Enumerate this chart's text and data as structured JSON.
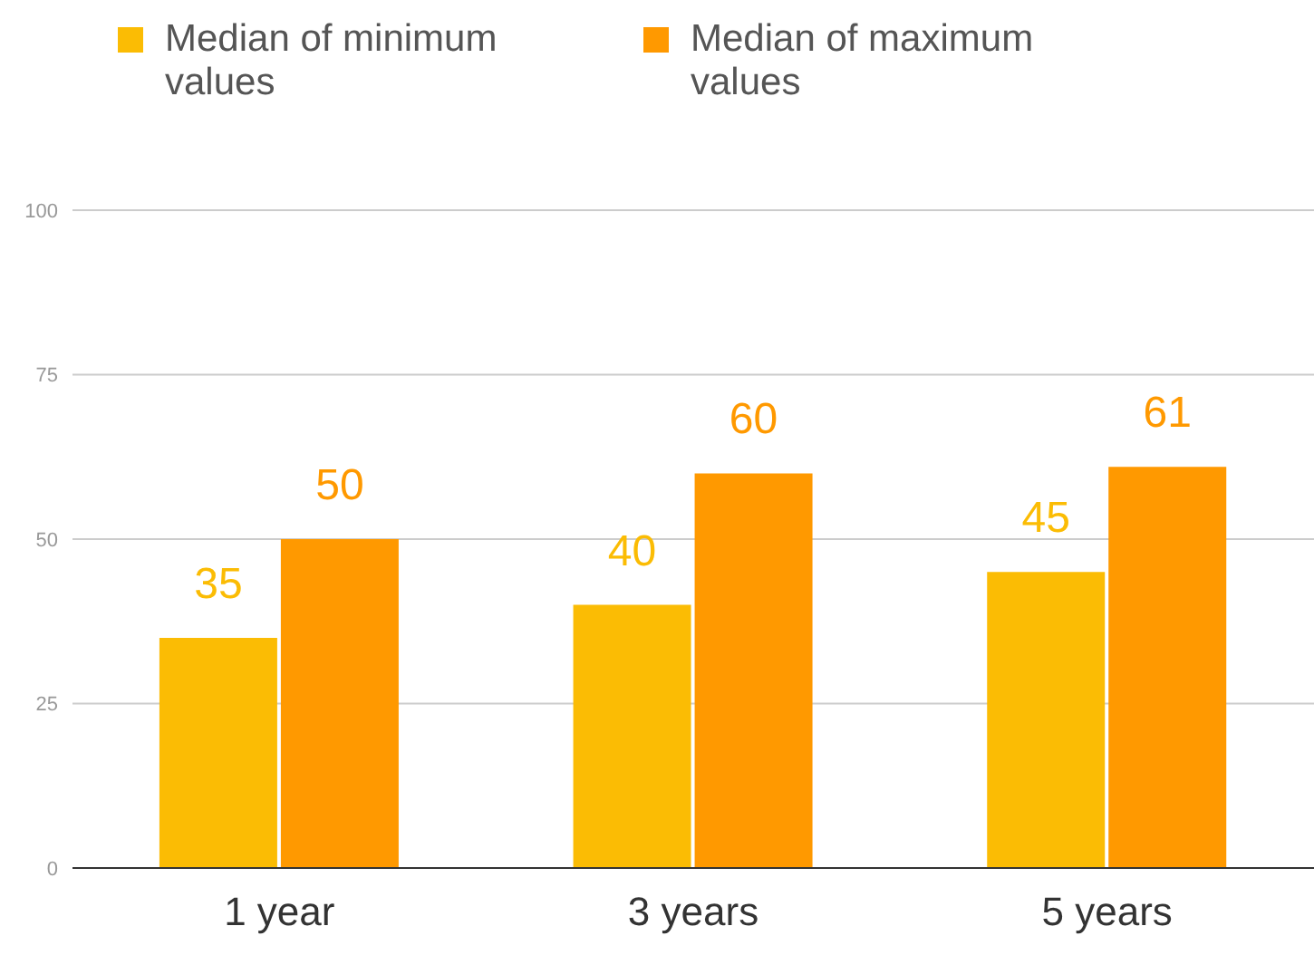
{
  "chart_data": {
    "type": "bar",
    "categories": [
      "1 year",
      "3 years",
      "5 years"
    ],
    "series": [
      {
        "name": "Median of minimum values",
        "color": "#fbbc04",
        "values": [
          35,
          40,
          45
        ]
      },
      {
        "name": "Median of maximum values",
        "color": "#ff9900",
        "values": [
          50,
          60,
          61
        ]
      }
    ],
    "ylim": [
      0,
      100
    ],
    "yticks": [
      0,
      25,
      50,
      75,
      100
    ],
    "grid": "y",
    "legend": "top left",
    "data_labels": true
  }
}
